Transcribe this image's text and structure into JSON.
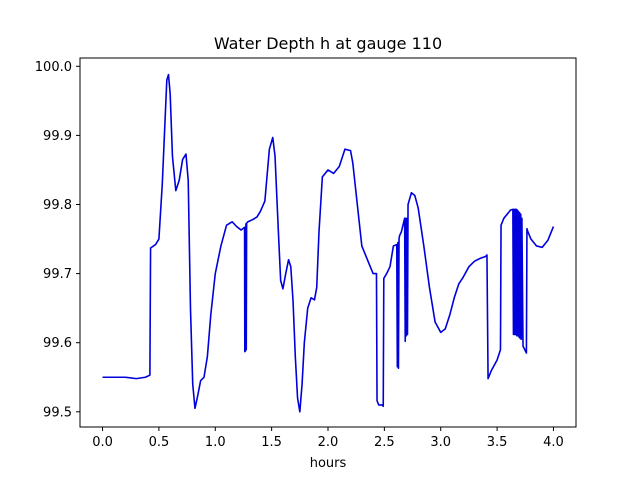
{
  "chart_data": {
    "type": "line",
    "title": "Water Depth h at gauge 110",
    "xlabel": "hours",
    "ylabel": "",
    "xlim": [
      -0.2,
      4.2
    ],
    "ylim": [
      99.478,
      100.012
    ],
    "xticks": [
      0.0,
      0.5,
      1.0,
      1.5,
      2.0,
      2.5,
      3.0,
      3.5,
      4.0
    ],
    "xtick_labels": [
      "0.0",
      "0.5",
      "1.0",
      "1.5",
      "2.0",
      "2.5",
      "3.0",
      "3.5",
      "4.0"
    ],
    "yticks": [
      99.5,
      99.6,
      99.7,
      99.8,
      99.9,
      100.0
    ],
    "ytick_labels": [
      "99.5",
      "99.6",
      "99.7",
      "99.8",
      "99.9",
      "100.0"
    ],
    "grid": false,
    "color": "#0000dd",
    "series": [
      {
        "x": [
          0.0,
          0.1,
          0.2,
          0.3,
          0.38,
          0.42,
          0.426,
          0.47,
          0.5,
          0.53,
          0.57,
          0.585,
          0.6,
          0.62,
          0.65,
          0.68,
          0.71,
          0.74,
          0.76,
          0.78,
          0.8,
          0.82,
          0.84,
          0.87,
          0.9,
          0.93,
          0.96,
          1.0,
          1.05,
          1.1,
          1.15,
          1.19,
          1.23,
          1.26,
          1.262,
          1.265,
          1.268,
          1.272,
          1.275,
          1.278,
          1.29,
          1.33,
          1.37,
          1.4,
          1.44,
          1.48,
          1.51,
          1.53,
          1.56,
          1.58,
          1.6,
          1.625,
          1.65,
          1.67,
          1.69,
          1.71,
          1.73,
          1.75,
          1.77,
          1.79,
          1.82,
          1.85,
          1.88,
          1.9,
          1.92,
          1.95,
          2.0,
          2.05,
          2.1,
          2.15,
          2.2,
          2.22,
          2.26,
          2.3,
          2.35,
          2.4,
          2.43,
          2.435,
          2.45,
          2.48,
          2.49,
          2.495,
          2.52,
          2.55,
          2.58,
          2.61,
          2.615,
          2.62,
          2.625,
          2.63,
          2.635,
          2.65,
          2.68,
          2.685,
          2.69,
          2.695,
          2.7,
          2.705,
          2.71,
          2.74,
          2.77,
          2.8,
          2.85,
          2.9,
          2.95,
          3.0,
          3.04,
          3.08,
          3.12,
          3.16,
          3.2,
          3.25,
          3.3,
          3.35,
          3.4,
          3.41,
          3.42,
          3.425,
          3.43,
          3.45,
          3.5,
          3.53,
          3.535,
          3.56,
          3.6,
          3.62,
          3.64,
          3.645,
          3.65,
          3.655,
          3.66,
          3.665,
          3.67,
          3.675,
          3.68,
          3.685,
          3.69,
          3.695,
          3.7,
          3.705,
          3.71,
          3.715,
          3.72,
          3.73,
          3.76,
          3.765,
          3.77,
          3.8,
          3.85,
          3.9,
          3.95,
          4.0
        ],
        "values": [
          99.55,
          99.55,
          99.55,
          99.548,
          99.55,
          99.553,
          99.737,
          99.742,
          99.75,
          99.83,
          99.98,
          99.988,
          99.96,
          99.87,
          99.82,
          99.835,
          99.865,
          99.873,
          99.835,
          99.65,
          99.54,
          99.505,
          99.52,
          99.545,
          99.55,
          99.58,
          99.64,
          99.7,
          99.74,
          99.77,
          99.775,
          99.768,
          99.763,
          99.767,
          99.587,
          99.766,
          99.588,
          99.772,
          99.59,
          99.773,
          99.775,
          99.778,
          99.782,
          99.79,
          99.805,
          99.88,
          99.897,
          99.87,
          99.76,
          99.69,
          99.678,
          99.7,
          99.72,
          99.71,
          99.66,
          99.58,
          99.52,
          99.5,
          99.54,
          99.6,
          99.65,
          99.665,
          99.662,
          99.68,
          99.76,
          99.84,
          99.85,
          99.845,
          99.855,
          99.88,
          99.878,
          99.86,
          99.8,
          99.74,
          99.72,
          99.7,
          99.7,
          99.516,
          99.51,
          99.51,
          99.508,
          99.693,
          99.7,
          99.71,
          99.74,
          99.742,
          99.565,
          99.745,
          99.563,
          99.75,
          99.755,
          99.76,
          99.78,
          99.602,
          99.78,
          99.61,
          99.78,
          99.612,
          99.8,
          99.817,
          99.813,
          99.795,
          99.74,
          99.68,
          99.63,
          99.615,
          99.62,
          99.64,
          99.665,
          99.685,
          99.695,
          99.71,
          99.718,
          99.722,
          99.725,
          99.727,
          99.548,
          99.55,
          99.552,
          99.56,
          99.575,
          99.59,
          99.77,
          99.78,
          99.788,
          99.792,
          99.793,
          99.612,
          99.793,
          99.612,
          99.793,
          99.612,
          99.793,
          99.61,
          99.792,
          99.61,
          99.79,
          99.608,
          99.788,
          99.606,
          99.786,
          99.605,
          99.78,
          99.595,
          99.585,
          99.765,
          99.762,
          99.75,
          99.74,
          99.738,
          99.748,
          99.768
        ]
      }
    ]
  }
}
